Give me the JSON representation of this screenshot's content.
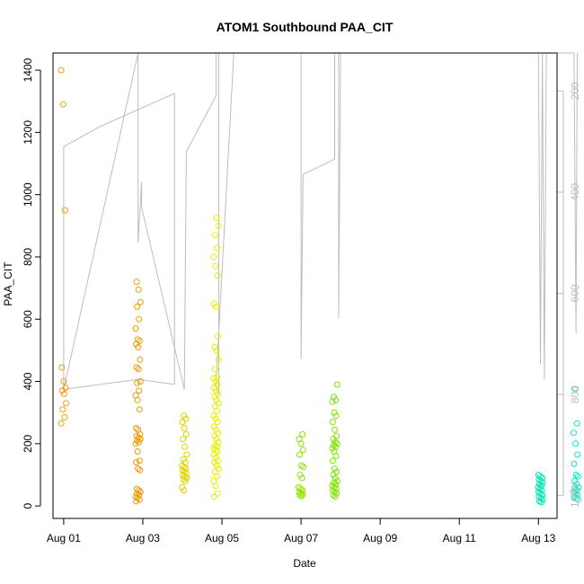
{
  "chart_data": {
    "type": "scatter",
    "title": "ATOM1 Southbound PAA_CIT",
    "xlabel": "Date",
    "ylabel": "PAA_CIT",
    "x_ticks": [
      "Aug 01",
      "Aug 03",
      "Aug 05",
      "Aug 07",
      "Aug 09",
      "Aug 11",
      "Aug 13"
    ],
    "y_ticks": [
      "0",
      "200",
      "400",
      "600",
      "800",
      "1000",
      "1200",
      "1400"
    ],
    "y2_ticks": [
      "200",
      "400",
      "600",
      "800",
      "1000"
    ],
    "xlim_days": [
      -0.27,
      12.47
    ],
    "ylim": [
      -40,
      1455
    ],
    "y2lim": [
      1045,
      125
    ],
    "grid": false,
    "secondary_line_color": "#bdbdbd",
    "series": [
      {
        "color": "#f39c12",
        "x": 0.0,
        "y": [
          1400,
          1290,
          950,
          445,
          400,
          380,
          370,
          360,
          330,
          310,
          285,
          265
        ]
      },
      {
        "color": "#ee9a00",
        "x": 1.88,
        "y": [
          720,
          695,
          655,
          640,
          600,
          570,
          535,
          530,
          520,
          510,
          470,
          445,
          440,
          400,
          395,
          370,
          355,
          340,
          310,
          250,
          245,
          230,
          225,
          220,
          215,
          210,
          205,
          200,
          175,
          145,
          140,
          120,
          115,
          55,
          50,
          45,
          40,
          35,
          30,
          25,
          20,
          15
        ]
      },
      {
        "color": "#dbd400",
        "x": 3.05,
        "y": [
          290,
          280,
          270,
          250,
          230,
          215,
          190,
          165,
          150,
          140,
          130,
          125,
          120,
          115,
          110,
          105,
          100,
          95,
          90,
          85,
          80,
          60,
          50
        ]
      },
      {
        "color": "#e6ee00",
        "x": 3.85,
        "y": [
          925,
          900,
          870,
          830,
          800,
          770,
          740,
          650,
          640,
          545,
          510,
          500,
          470,
          440,
          415,
          410,
          400,
          390,
          380,
          370,
          360,
          350,
          340,
          330,
          320,
          305,
          290,
          280,
          270,
          255,
          245,
          235,
          225,
          215,
          205,
          195,
          190,
          185,
          180,
          175,
          165,
          155,
          145,
          140,
          130,
          120,
          110,
          95,
          80,
          65,
          40,
          30
        ]
      },
      {
        "color": "#8fe200",
        "x": 6.0,
        "y": [
          230,
          215,
          200,
          180,
          165,
          130,
          125,
          100,
          90,
          60,
          55,
          50,
          45,
          40,
          38,
          35,
          32
        ]
      },
      {
        "color": "#7ee600",
        "x": 6.85,
        "y": [
          390,
          350,
          340,
          335,
          300,
          290,
          270,
          245,
          225,
          215,
          205,
          200,
          195,
          190,
          185,
          175,
          160,
          145,
          120,
          110,
          100,
          90,
          80,
          75,
          70,
          65,
          60,
          55,
          50,
          45,
          40,
          35,
          30
        ]
      },
      {
        "color": "#00e7b3",
        "x": 12.05,
        "y": [
          100,
          95,
          90,
          85,
          80,
          75,
          70,
          65,
          60,
          55,
          50,
          45,
          40,
          35,
          30,
          25,
          20,
          15,
          12
        ]
      },
      {
        "color": "#00ecc7",
        "x": 12.95,
        "y": [
          375,
          265,
          235,
          200,
          165,
          135,
          100,
          95,
          80,
          70,
          60,
          55,
          50,
          45,
          40,
          35,
          30,
          25,
          20
        ]
      }
    ],
    "secondary_line": {
      "color": "#bdbdbd",
      "points": [
        [
          0.0,
          790
        ],
        [
          0.0,
          600
        ],
        [
          0.0,
          310
        ],
        [
          0.93,
          270
        ],
        [
          2.8,
          205
        ],
        [
          2.8,
          780
        ],
        [
          1.88,
          770
        ],
        [
          0.0,
          790
        ],
        [
          1.88,
          125
        ],
        [
          1.88,
          500
        ],
        [
          1.97,
          380
        ],
        [
          1.97,
          430
        ],
        [
          3.05,
          790
        ],
        [
          3.1,
          320
        ],
        [
          3.85,
          210
        ],
        [
          3.85,
          125
        ],
        [
          3.92,
          125
        ],
        [
          3.92,
          800
        ],
        [
          3.85,
          780
        ],
        [
          4.3,
          125
        ],
        [
          6.0,
          125
        ],
        [
          6.0,
          730
        ],
        [
          6.05,
          365
        ],
        [
          6.85,
          335
        ],
        [
          6.85,
          125
        ],
        [
          6.95,
          125
        ],
        [
          6.95,
          650
        ],
        [
          7.0,
          125
        ],
        [
          12.0,
          125
        ],
        [
          12.05,
          740
        ],
        [
          12.1,
          125
        ],
        [
          12.15,
          770
        ],
        [
          12.2,
          125
        ],
        [
          12.9,
          125
        ],
        [
          12.95,
          680
        ],
        [
          12.98,
          125
        ]
      ]
    }
  }
}
